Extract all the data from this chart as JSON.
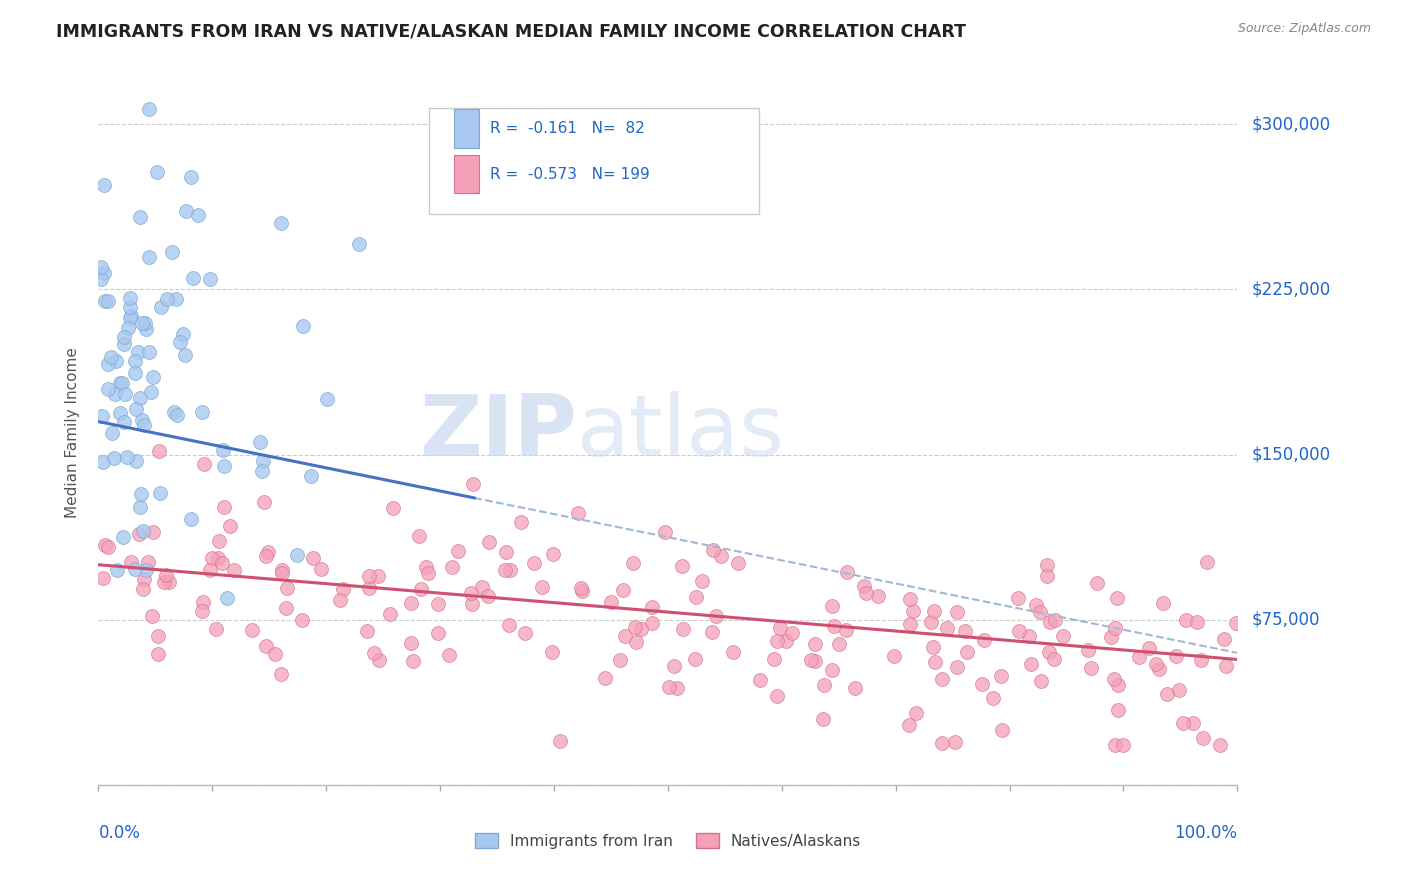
{
  "title": "IMMIGRANTS FROM IRAN VS NATIVE/ALASKAN MEDIAN FAMILY INCOME CORRELATION CHART",
  "source_text": "Source: ZipAtlas.com",
  "ylabel": "Median Family Income",
  "yticks": [
    0,
    75000,
    150000,
    225000,
    300000
  ],
  "ytick_labels": [
    "",
    "$75,000",
    "$150,000",
    "$225,000",
    "$300,000"
  ],
  "xlim": [
    0,
    100
  ],
  "ylim": [
    0,
    320000
  ],
  "series1_color": "#a8c8f0",
  "series1_edge": "#7aaad4",
  "series1_label": "Immigrants from Iran",
  "series1_R": -0.161,
  "series1_N": 82,
  "series1_line_color": "#4472c4",
  "series2_color": "#f4a0b8",
  "series2_edge": "#d87090",
  "series2_label": "Natives/Alaskans",
  "series2_R": -0.573,
  "series2_N": 199,
  "series2_line_color": "#d05070",
  "trend_ext_color": "#a0b8d8",
  "watermark_zip": "ZIP",
  "watermark_atlas": "atlas",
  "background_color": "#ffffff",
  "legend_text_color": "#2166cc",
  "axis_label_color": "#2166cc",
  "ylabel_color": "#555555",
  "title_color": "#222222"
}
